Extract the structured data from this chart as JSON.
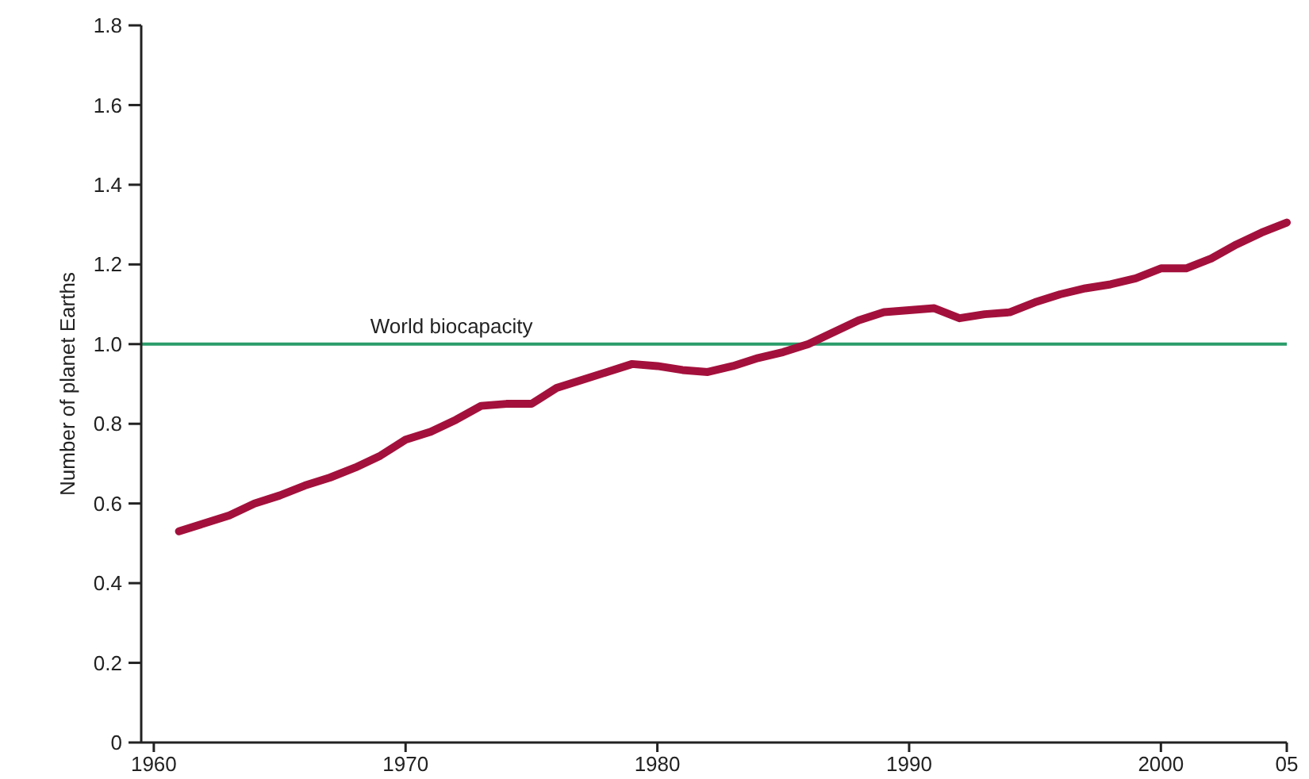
{
  "chart_data": {
    "type": "line",
    "ylabel": "Number of planet Earths",
    "x": [
      1961,
      1962,
      1963,
      1964,
      1965,
      1966,
      1967,
      1968,
      1969,
      1970,
      1971,
      1972,
      1973,
      1974,
      1975,
      1976,
      1977,
      1978,
      1979,
      1980,
      1981,
      1982,
      1983,
      1984,
      1985,
      1986,
      1987,
      1988,
      1989,
      1990,
      1991,
      1992,
      1993,
      1994,
      1995,
      1996,
      1997,
      1998,
      1999,
      2000,
      2001,
      2002,
      2003,
      2004,
      2005
    ],
    "series": [
      {
        "color": "#a3103c",
        "values": [
          0.53,
          0.55,
          0.57,
          0.6,
          0.62,
          0.645,
          0.665,
          0.69,
          0.72,
          0.76,
          0.78,
          0.81,
          0.845,
          0.85,
          0.85,
          0.89,
          0.91,
          0.93,
          0.95,
          0.945,
          0.935,
          0.93,
          0.945,
          0.965,
          0.98,
          1.0,
          1.03,
          1.06,
          1.08,
          1.085,
          1.09,
          1.065,
          1.075,
          1.08,
          1.105,
          1.125,
          1.14,
          1.15,
          1.165,
          1.19,
          1.19,
          1.215,
          1.25,
          1.28,
          1.305
        ]
      }
    ],
    "xlim": [
      1959.5,
      2005
    ],
    "xticks": [
      1960,
      1970,
      1980,
      1990,
      2000,
      {
        "value": 2005,
        "label": "05"
      }
    ],
    "ylim": [
      0,
      1.8
    ],
    "yticks": [
      0,
      0.2,
      0.4,
      0.6,
      0.8,
      {
        "value": 1,
        "label": "1.0"
      },
      1.2,
      1.4,
      1.6,
      1.8
    ],
    "ref_lines": [
      {
        "axis": "y",
        "value": 1.0,
        "label": "World biocapacity",
        "color": "#2a9d6a"
      }
    ],
    "grid": false,
    "marker": "none",
    "line_style": "solid"
  }
}
